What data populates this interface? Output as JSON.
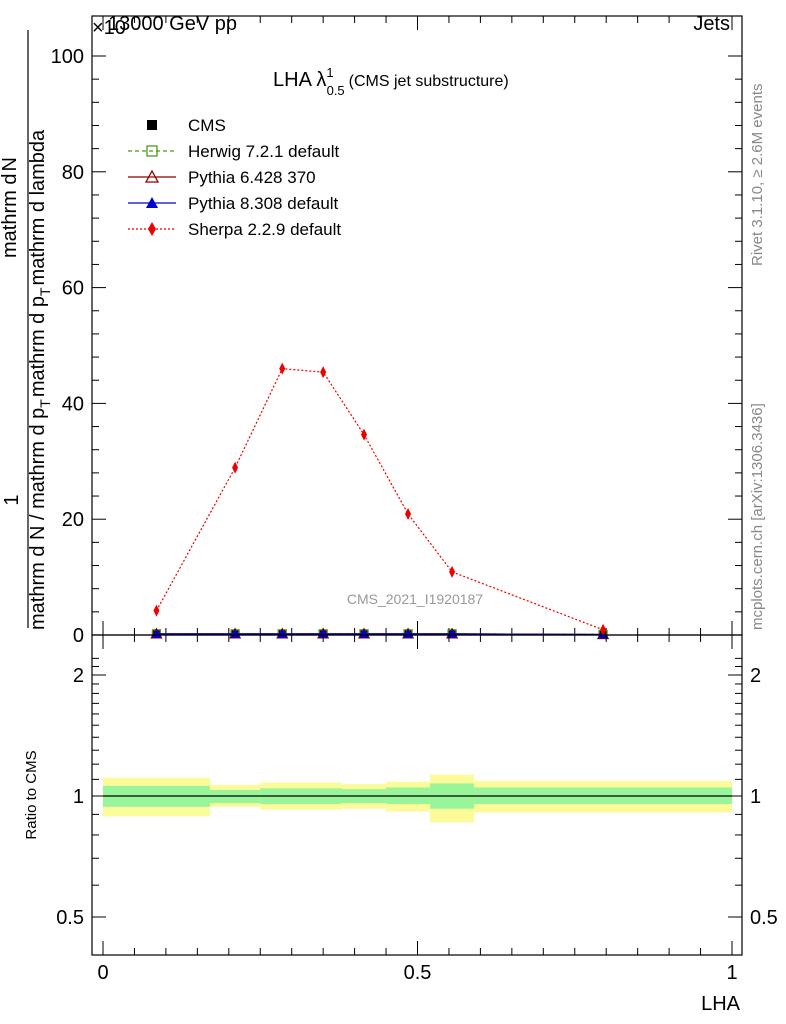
{
  "header": {
    "left": "13000 GeV pp",
    "right": "Jets",
    "exponent": "×10"
  },
  "watermark": "CMS_2021_I1920187",
  "side_text": {
    "rivet": "Rivet 3.1.10, ≥ 2.6M events",
    "mcplots": "mcplots.cern.ch [arXiv:1306.3436]"
  },
  "colors": {
    "cms": "#000000",
    "herwig": "#4a9a1a",
    "pythia6": "#8b0000",
    "pythia8": "#0000cc",
    "sherpa": "#ee0000",
    "band_inner": "#99f599",
    "band_outer": "#fbfb99"
  },
  "chart_data": [
    {
      "type": "line",
      "title": "LHA λ",
      "title_sup": "1",
      "title_sub": "0.5",
      "title_suffix": "(CMS jet substructure)",
      "ylabel_top": "1",
      "ylabel_bottom": "mathrm d N / mathrm d p",
      "ylabel_bottom2": "mathrm d p",
      "ylabel_bottom_sub": "T",
      "ylabel_numerator": "mathrm d",
      "ylabel_numerator2": "N",
      "ylabel_denominator": "mathrm d p",
      "ylabel_denominator_sub": "T",
      "ylabel_denominator2": "mathrm d lambda",
      "xlim": [
        0,
        1
      ],
      "ylim": [
        0,
        100
      ],
      "yticks": [
        "0",
        "20",
        "40",
        "60",
        "80",
        "100"
      ],
      "legend_position": "top-left",
      "series": [
        {
          "name": "CMS",
          "marker": "square",
          "x": [
            0.085,
            0.21,
            0.285,
            0.35,
            0.415,
            0.485,
            0.555,
            0.795
          ],
          "y": [
            0.2,
            0.2,
            0.2,
            0.2,
            0.2,
            0.2,
            0.2,
            0.1
          ]
        },
        {
          "name": "Herwig 7.2.1 default",
          "marker": "open-square",
          "x": [
            0.085,
            0.21,
            0.285,
            0.35,
            0.415,
            0.485,
            0.555,
            0.795
          ],
          "y": [
            0.2,
            0.2,
            0.2,
            0.2,
            0.2,
            0.2,
            0.2,
            0.1
          ]
        },
        {
          "name": "Pythia 6.428 370",
          "marker": "open-triangle",
          "x": [
            0.085,
            0.21,
            0.285,
            0.35,
            0.415,
            0.485,
            0.555,
            0.795
          ],
          "y": [
            0.2,
            0.2,
            0.2,
            0.2,
            0.2,
            0.2,
            0.2,
            0.1
          ]
        },
        {
          "name": "Pythia 8.308 default",
          "marker": "triangle",
          "x": [
            0.085,
            0.21,
            0.285,
            0.35,
            0.415,
            0.485,
            0.555,
            0.795
          ],
          "y": [
            0.2,
            0.2,
            0.2,
            0.2,
            0.2,
            0.2,
            0.2,
            0.1
          ]
        },
        {
          "name": "Sherpa 2.2.9 default",
          "marker": "diamond",
          "x": [
            0.085,
            0.21,
            0.285,
            0.35,
            0.415,
            0.485,
            0.555,
            0.795
          ],
          "y": [
            4.2,
            28.9,
            46.0,
            45.4,
            34.6,
            20.9,
            10.9,
            0.9
          ]
        }
      ]
    },
    {
      "type": "area",
      "ylabel": "Ratio to CMS",
      "xlabel": "LHA",
      "xlim": [
        0,
        1
      ],
      "ylim": [
        0.4,
        2.3
      ],
      "xticks": [
        "0",
        "0.5",
        "1"
      ],
      "yticks": [
        "0.5",
        "1",
        "2"
      ],
      "bins": [
        {
          "lo": 0.0,
          "hi": 0.17,
          "inner": [
            0.94,
            1.06
          ],
          "outer": [
            0.89,
            1.11
          ]
        },
        {
          "lo": 0.17,
          "hi": 0.25,
          "inner": [
            0.96,
            1.035
          ],
          "outer": [
            0.94,
            1.065
          ]
        },
        {
          "lo": 0.25,
          "hi": 0.38,
          "inner": [
            0.955,
            1.045
          ],
          "outer": [
            0.925,
            1.08
          ]
        },
        {
          "lo": 0.38,
          "hi": 0.45,
          "inner": [
            0.96,
            1.04
          ],
          "outer": [
            0.93,
            1.07
          ]
        },
        {
          "lo": 0.45,
          "hi": 0.52,
          "inner": [
            0.955,
            1.05
          ],
          "outer": [
            0.915,
            1.085
          ]
        },
        {
          "lo": 0.52,
          "hi": 0.59,
          "inner": [
            0.93,
            1.075
          ],
          "outer": [
            0.86,
            1.13
          ]
        },
        {
          "lo": 0.59,
          "hi": 1.0,
          "inner": [
            0.955,
            1.05
          ],
          "outer": [
            0.91,
            1.09
          ]
        }
      ]
    }
  ]
}
